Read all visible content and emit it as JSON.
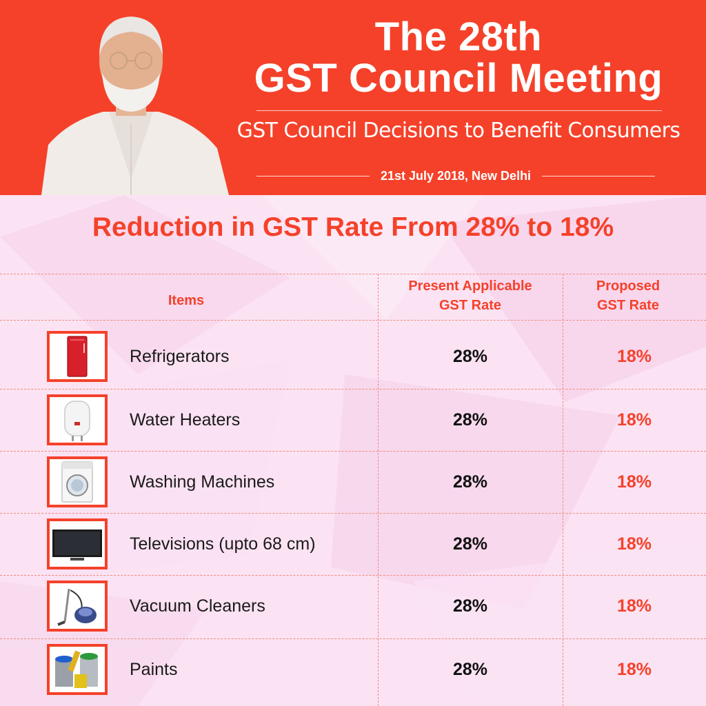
{
  "header": {
    "title_line1": "The 28th",
    "title_line2": "GST Council Meeting",
    "subtitle": "GST Council Decisions to Benefit Consumers",
    "date": "21st July 2018, New Delhi"
  },
  "headline": "Reduction in GST Rate From 28% to 18%",
  "table": {
    "columns": {
      "items": "Items",
      "present_line1": "Present Applicable",
      "present_line2": "GST Rate",
      "proposed_line1": "Proposed",
      "proposed_line2": "GST Rate"
    },
    "rows": [
      {
        "name": "Refrigerators",
        "present": "28%",
        "proposed": "18%",
        "icon": "refrigerator-icon"
      },
      {
        "name": "Water Heaters",
        "present": "28%",
        "proposed": "18%",
        "icon": "water-heater-icon"
      },
      {
        "name": "Washing Machines",
        "present": "28%",
        "proposed": "18%",
        "icon": "washing-machine-icon"
      },
      {
        "name": "Televisions (upto 68 cm)",
        "present": "28%",
        "proposed": "18%",
        "icon": "television-icon"
      },
      {
        "name": "Vacuum Cleaners",
        "present": "28%",
        "proposed": "18%",
        "icon": "vacuum-cleaner-icon"
      },
      {
        "name": "Paints",
        "present": "28%",
        "proposed": "18%",
        "icon": "paint-cans-icon"
      }
    ]
  },
  "colors": {
    "brand_red": "#f5412a",
    "background_pink": "#fbe3f3",
    "text_dark": "#111111"
  }
}
